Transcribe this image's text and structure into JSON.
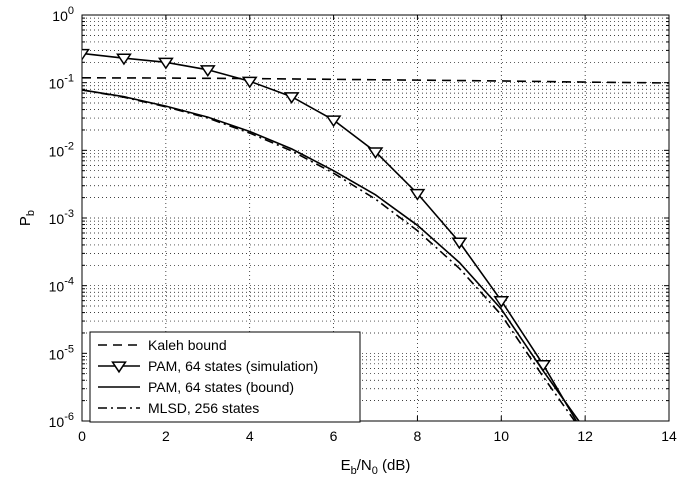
{
  "chart_data": {
    "type": "line",
    "title": "",
    "xlabel": "E_b/N_0 (dB)",
    "xlabel_parts": {
      "main": "E",
      "sub1": "b",
      "mid": "/N",
      "sub2": "0",
      "tail": " (dB)"
    },
    "ylabel": "P_b",
    "ylabel_parts": {
      "main": "P",
      "sub": "b"
    },
    "xlim": [
      0,
      14
    ],
    "ylim_log10": [
      -6,
      0
    ],
    "yscale": "log",
    "grid": true,
    "legend_position": "bottom-left",
    "x_ticks": [
      "0",
      "2",
      "4",
      "6",
      "8",
      "10",
      "12",
      "14"
    ],
    "y_ticks": [
      {
        "base": "10",
        "exp": "0"
      },
      {
        "base": "10",
        "exp": "-1"
      },
      {
        "base": "10",
        "exp": "-2"
      },
      {
        "base": "10",
        "exp": "-3"
      },
      {
        "base": "10",
        "exp": "-4"
      },
      {
        "base": "10",
        "exp": "-5"
      },
      {
        "base": "10",
        "exp": "-6"
      }
    ],
    "series": [
      {
        "name": "Kaleh bound",
        "style": "dashed",
        "marker": "none",
        "x": [
          0,
          2,
          4,
          6,
          8,
          10,
          12,
          14
        ],
        "y": [
          0.118,
          0.117,
          0.115,
          0.112,
          0.109,
          0.106,
          0.102,
          0.099
        ]
      },
      {
        "name": "PAM, 64 states (simulation)",
        "style": "solid",
        "marker": "triangle-down",
        "x": [
          0,
          1,
          2,
          3,
          4,
          5,
          6,
          7,
          8,
          9,
          10,
          11,
          12
        ],
        "y": [
          0.27,
          0.23,
          0.2,
          0.155,
          0.105,
          0.062,
          0.028,
          0.0095,
          0.0023,
          0.00044,
          6e-05,
          6.8e-06,
          6e-07
        ]
      },
      {
        "name": "PAM, 64 states (bound)",
        "style": "solid",
        "marker": "none",
        "x": [
          0,
          1,
          2,
          3,
          4,
          5,
          6,
          7,
          8,
          9,
          10,
          11,
          11.85
        ],
        "y": [
          0.078,
          0.062,
          0.045,
          0.031,
          0.019,
          0.0105,
          0.005,
          0.0022,
          0.00078,
          0.00022,
          4.5e-05,
          5.5e-06,
          1e-06
        ]
      },
      {
        "name": "MLSD, 256 states",
        "style": "dashdot",
        "marker": "none",
        "x": [
          0,
          1,
          2,
          3,
          4,
          5,
          6,
          7,
          8,
          9,
          10,
          11,
          11.75
        ],
        "y": [
          0.078,
          0.061,
          0.044,
          0.03,
          0.018,
          0.0098,
          0.0046,
          0.0019,
          0.00065,
          0.00018,
          3.7e-05,
          4.5e-06,
          1e-06
        ]
      }
    ]
  }
}
